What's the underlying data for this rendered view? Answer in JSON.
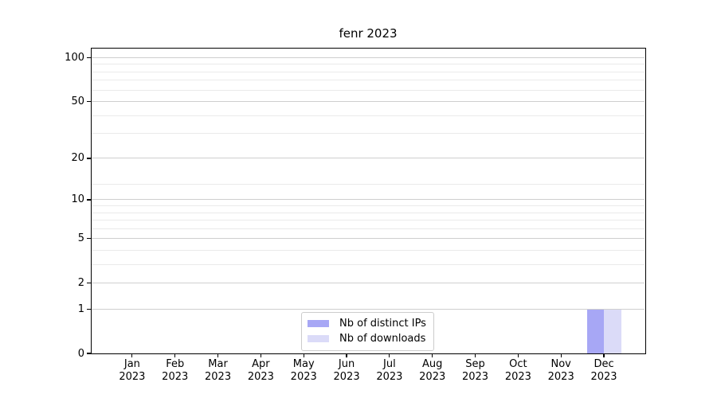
{
  "chart_data": {
    "type": "bar",
    "title": "fenr 2023",
    "x_tick_months": [
      "Jan",
      "Feb",
      "Mar",
      "Apr",
      "May",
      "Jun",
      "Jul",
      "Aug",
      "Sep",
      "Oct",
      "Nov",
      "Dec"
    ],
    "x_tick_year": "2023",
    "series": [
      {
        "name": "Nb of distinct IPs",
        "color": "#a7a7f5",
        "values": [
          0,
          0,
          0,
          0,
          0,
          0,
          0,
          0,
          0,
          0,
          0,
          1
        ]
      },
      {
        "name": "Nb of downloads",
        "color": "#dbdbf8",
        "values": [
          0,
          0,
          0,
          0,
          0,
          0,
          0,
          0,
          0,
          0,
          0,
          1
        ]
      }
    ],
    "y_scale": "log1p",
    "ylim": [
      0,
      115
    ],
    "y_major_ticks": [
      0,
      1,
      2,
      5,
      10,
      20,
      50,
      100
    ],
    "y_minor_gridlines": [
      3,
      4,
      6,
      7,
      8,
      9,
      13,
      30,
      40,
      60,
      70,
      80,
      90
    ],
    "grid": true,
    "legend": {
      "position": "lower center"
    },
    "colors": {
      "major_grid": "#cfcfcf",
      "minor_grid": "#eaeaea",
      "axis": "#000000",
      "background": "#ffffff"
    }
  }
}
